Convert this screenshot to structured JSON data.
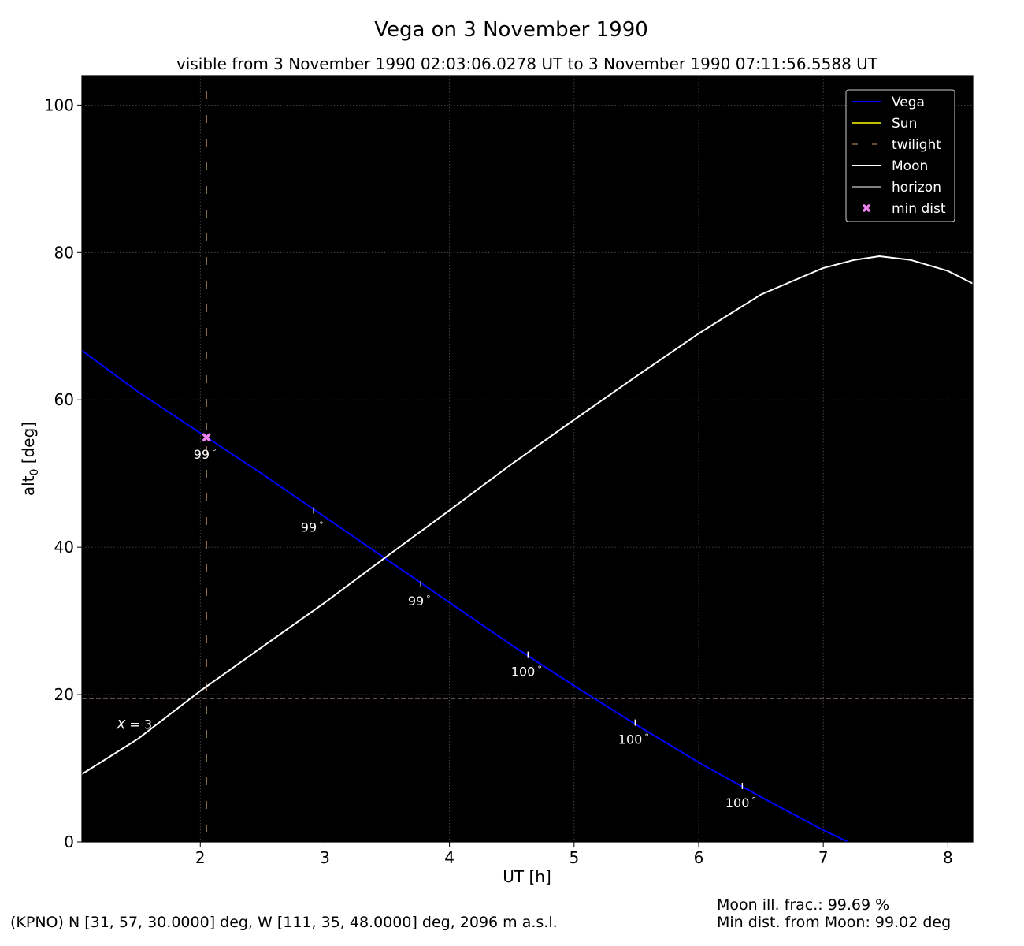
{
  "chart_data": {
    "type": "line",
    "title": "Vega on 3 November 1990",
    "subtitle": "visible from 3 November 1990 02:03:06.0278 UT to 3 November 1990 07:11:56.5588 UT",
    "xlabel": "UT [h]",
    "ylabel_main": "alt",
    "ylabel_sub": "0",
    "ylabel_unit": " [deg]",
    "xlim": [
      1.05,
      8.2
    ],
    "ylim": [
      0,
      104
    ],
    "xticks": [
      2,
      3,
      4,
      5,
      6,
      7,
      8
    ],
    "yticks": [
      0,
      20,
      40,
      60,
      80,
      100
    ],
    "grid": true,
    "background": "#000000",
    "legend_position": "top-right",
    "legend": [
      {
        "label": "Vega",
        "color": "#0000ff",
        "style": "solid"
      },
      {
        "label": "Sun",
        "color": "#bfbf00",
        "style": "solid"
      },
      {
        "label": "twilight",
        "color": "#8b6b4a",
        "style": "dashed"
      },
      {
        "label": "Moon",
        "color": "#ffffff",
        "style": "solid"
      },
      {
        "label": "horizon",
        "color": "#808080",
        "style": "solid"
      },
      {
        "label": "min dist",
        "color": "#ee82ee",
        "style": "marker"
      }
    ],
    "series": [
      {
        "name": "Vega",
        "color": "#0000ff",
        "x": [
          1.05,
          1.5,
          2.0,
          2.5,
          3.0,
          3.5,
          4.0,
          4.5,
          5.0,
          5.5,
          6.0,
          6.5,
          7.0,
          7.2
        ],
        "y": [
          66.7,
          61.1,
          55.5,
          49.9,
          44.1,
          38.3,
          32.5,
          26.7,
          21.2,
          15.9,
          10.8,
          6.1,
          1.6,
          0.0
        ]
      },
      {
        "name": "Moon",
        "color": "#ffffff",
        "x": [
          1.05,
          1.5,
          2.0,
          2.5,
          3.0,
          3.5,
          4.0,
          4.5,
          5.0,
          5.5,
          6.0,
          6.5,
          7.0,
          7.25,
          7.45,
          7.7,
          8.0,
          8.2
        ],
        "y": [
          9.2,
          14.0,
          20.5,
          26.5,
          32.5,
          38.8,
          45.0,
          51.3,
          57.3,
          63.2,
          69.0,
          74.3,
          77.9,
          79.0,
          79.5,
          79.0,
          77.5,
          75.8
        ]
      }
    ],
    "twilight_x": 2.05,
    "airmass_line": {
      "y": 19.5,
      "label_prefix": "X",
      "label_value": "= 3",
      "label_x": 1.33,
      "label_y": 16.0,
      "color": "#c8a0a0"
    },
    "min_dist_point": {
      "x": 2.05,
      "y": 54.9
    },
    "distance_labels": [
      {
        "x": 2.05,
        "y": 54.9,
        "text": "99",
        "unit": "°"
      },
      {
        "x": 2.91,
        "y": 45.0,
        "text": "99",
        "unit": "°"
      },
      {
        "x": 3.77,
        "y": 35.0,
        "text": "99",
        "unit": "°"
      },
      {
        "x": 4.63,
        "y": 25.4,
        "text": "100",
        "unit": "°"
      },
      {
        "x": 5.49,
        "y": 16.2,
        "text": "100",
        "unit": "°"
      },
      {
        "x": 6.35,
        "y": 7.6,
        "text": "100",
        "unit": "°"
      }
    ]
  },
  "footer": {
    "location": "(KPNO) N [31, 57, 30.0000] deg, W [111, 35, 48.0000] deg, 2096 m a.s.l.",
    "moon_illum": "Moon ill. frac.: 99.69 %",
    "min_dist": "Min dist. from Moon: 99.02 deg"
  }
}
